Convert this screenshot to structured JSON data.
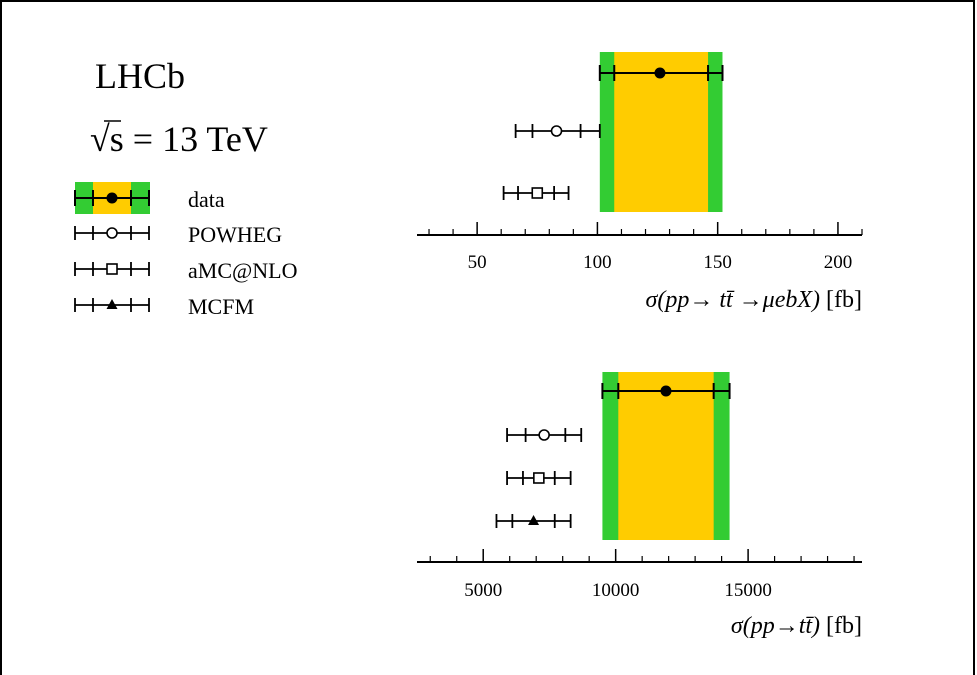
{
  "header": {
    "experiment": "LHCb",
    "energy_sqrt": "√s",
    "energy_rest": " = 13 TeV"
  },
  "legend": {
    "items": [
      {
        "key": "data",
        "label": "data",
        "marker": "filled-circle"
      },
      {
        "key": "powheg",
        "label": "POWHEG",
        "marker": "open-circle"
      },
      {
        "key": "amcnlo",
        "label": "aMC@NLO",
        "marker": "open-square"
      },
      {
        "key": "mcfm",
        "label": "MCFM",
        "marker": "filled-triangle"
      }
    ]
  },
  "colors": {
    "stat_band": "#ffcc00",
    "total_band": "#33cc33",
    "ink": "#000000"
  },
  "chart_data": [
    {
      "type": "scatter",
      "xlabel": {
        "func": "σ(pp→ tt̄ →μebX)",
        "unit": " [fb]"
      },
      "xlim": [
        25,
        210
      ],
      "ticks": [
        50,
        100,
        150,
        200
      ],
      "tick_labels": [
        "50",
        "100",
        "150",
        "200"
      ],
      "minor_step": 10,
      "data": {
        "value": 126,
        "stat": [
          107,
          146
        ],
        "total": [
          101,
          152
        ]
      },
      "predictions": [
        {
          "key": "powheg",
          "value": 83,
          "inner": [
            73,
            93
          ],
          "outer": [
            66,
            101
          ]
        },
        {
          "key": "amcnlo",
          "value": 75,
          "inner": [
            67,
            82
          ],
          "outer": [
            61,
            88
          ]
        }
      ]
    },
    {
      "type": "scatter",
      "xlabel": {
        "func": "σ(pp→tt̄)",
        "unit": " [fb]"
      },
      "xlim": [
        2500,
        19300
      ],
      "ticks": [
        5000,
        10000,
        15000
      ],
      "tick_labels": [
        "5000",
        "10000",
        "15000"
      ],
      "minor_step": 1000,
      "data": {
        "value": 11900,
        "stat": [
          10100,
          13700
        ],
        "total": [
          9500,
          14300
        ]
      },
      "predictions": [
        {
          "key": "powheg",
          "value": 7300,
          "inner": [
            6600,
            8100
          ],
          "outer": [
            5900,
            8700
          ]
        },
        {
          "key": "amcnlo",
          "value": 7100,
          "inner": [
            6500,
            7700
          ],
          "outer": [
            5900,
            8300
          ]
        },
        {
          "key": "mcfm",
          "value": 6900,
          "inner": [
            6100,
            7700
          ],
          "outer": [
            5500,
            8300
          ]
        }
      ]
    }
  ]
}
